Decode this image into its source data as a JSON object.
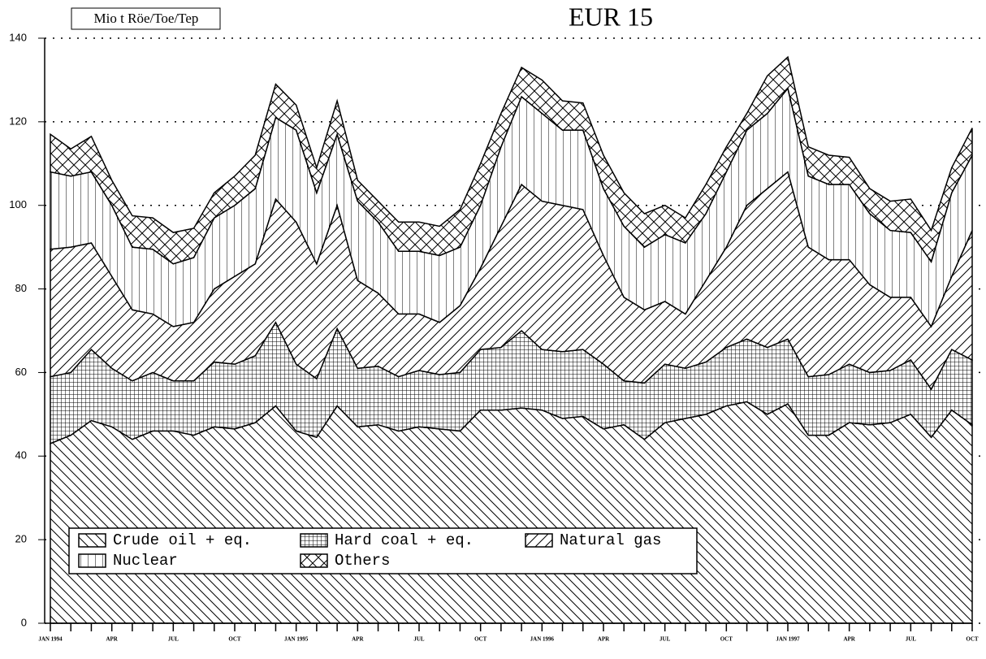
{
  "chart_data": {
    "type": "stacked-area",
    "title": "EUR 15",
    "y_label": "Mio t Röe/Toe/Tep",
    "categories": [
      "JAN 1994",
      null,
      null,
      "APR",
      null,
      null,
      "JUL",
      null,
      null,
      "OCT",
      null,
      null,
      "JAN 1995",
      null,
      null,
      "APR",
      null,
      null,
      "JUL",
      null,
      null,
      "OCT",
      null,
      null,
      "JAN 1996",
      null,
      null,
      "APR",
      null,
      null,
      "JUL",
      null,
      null,
      "OCT",
      null,
      null,
      "JAN 1997",
      null,
      null,
      "APR",
      null,
      null,
      "JUL",
      null,
      null,
      "OCT"
    ],
    "ylim": [
      0,
      140
    ],
    "yticks": [
      0,
      20,
      40,
      60,
      80,
      100,
      120,
      140
    ],
    "grid": true,
    "color": "#000000",
    "series": [
      {
        "name": "Crude oil + eq.",
        "pattern": "diag-down",
        "values": [
          43,
          45,
          48.5,
          47,
          44,
          46,
          46,
          45,
          47,
          46.5,
          48,
          52,
          46,
          44.5,
          52,
          47,
          47.5,
          46,
          47,
          46.5,
          46,
          51,
          51,
          51.5,
          51,
          49,
          49.5,
          46.5,
          47.5,
          44,
          48,
          49,
          50,
          52,
          53,
          50,
          52.5,
          45,
          45,
          48,
          47.5,
          48,
          50,
          44.5,
          51,
          47.5
        ]
      },
      {
        "name": "Hard coal + eq.",
        "pattern": "grid",
        "values": [
          16,
          15,
          17,
          14,
          14,
          14,
          12,
          13,
          15.5,
          15.5,
          16,
          20,
          16,
          14,
          18.5,
          14,
          14,
          13,
          13.5,
          13,
          14,
          14.5,
          15,
          18.5,
          14.5,
          16,
          16,
          15.5,
          10.5,
          13.5,
          14,
          12,
          12.5,
          14,
          15,
          16,
          15.5,
          14,
          14.5,
          14,
          12.5,
          12.5,
          13,
          11.5,
          14.5,
          15.5
        ]
      },
      {
        "name": "Natural gas",
        "pattern": "diag-up",
        "values": [
          30.5,
          30,
          25.5,
          22,
          17,
          14,
          13,
          14,
          17.5,
          21,
          22,
          29.5,
          34,
          27.5,
          29.5,
          21,
          17.5,
          15,
          13.5,
          12.5,
          16,
          19.5,
          29,
          35,
          35.5,
          35,
          33.5,
          26,
          20,
          17.5,
          15,
          13,
          19.5,
          24,
          32,
          38,
          40,
          31,
          27.5,
          25,
          21,
          17.5,
          15,
          15,
          17.5,
          31
        ]
      },
      {
        "name": "Nuclear",
        "pattern": "vertical",
        "values": [
          18.5,
          17,
          17,
          17,
          15,
          15.5,
          15,
          15.5,
          17,
          17,
          18,
          19.5,
          22,
          17,
          17,
          19,
          17,
          15,
          15,
          16,
          14,
          15,
          19,
          21,
          21,
          18,
          19,
          16,
          17,
          15,
          16,
          17,
          16,
          18,
          18,
          18,
          20,
          17,
          18,
          18,
          17,
          16,
          15.5,
          15.5,
          20,
          18
        ]
      },
      {
        "name": "Others",
        "pattern": "cross",
        "values": [
          9,
          6.5,
          8.5,
          6,
          7.5,
          7.5,
          7.5,
          7,
          6,
          7,
          8,
          8,
          6,
          6,
          8,
          5,
          5,
          7,
          7,
          7,
          9,
          10,
          8,
          7,
          8,
          7,
          6.5,
          8,
          8,
          8,
          7,
          6,
          7,
          6,
          4,
          9,
          7.5,
          7,
          7,
          6.5,
          6,
          7,
          8,
          7.5,
          6,
          6.5
        ]
      }
    ]
  }
}
